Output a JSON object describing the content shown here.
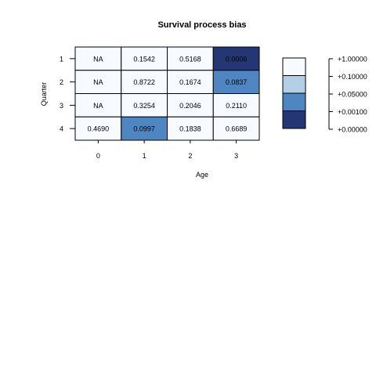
{
  "chart_data": {
    "type": "heatmap",
    "title": "Survival process bias",
    "xlabel": "Age",
    "ylabel": "Quarter",
    "x_categories": [
      "0",
      "1",
      "2",
      "3"
    ],
    "y_categories": [
      "1",
      "2",
      "3",
      "4"
    ],
    "cells": [
      [
        "NA",
        "0.1542",
        "0.5168",
        "0.0006"
      ],
      [
        "NA",
        "0.8722",
        "0.1674",
        "0.0837"
      ],
      [
        "NA",
        "0.3254",
        "0.2046",
        "0.2110"
      ],
      [
        "0.4690",
        "0.0997",
        "0.1838",
        "0.6689"
      ]
    ],
    "color_levels": [
      0,
      0,
      0,
      3,
      0,
      0,
      0,
      2,
      0,
      0,
      0,
      0,
      0,
      2,
      0,
      0
    ],
    "legend": {
      "colors": [
        "#f7fbff",
        "#b3cfe6",
        "#4f86c1",
        "#243673"
      ],
      "labels": [
        "+1.00000",
        "+0.10000",
        "+0.05000",
        "+0.00100",
        "+0.00000"
      ]
    }
  }
}
